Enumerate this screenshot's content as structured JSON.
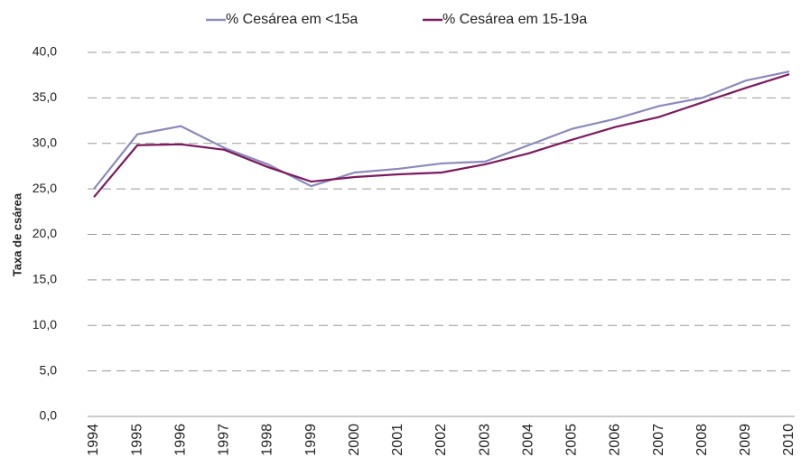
{
  "chart_data": {
    "type": "line",
    "y_label": "Taxa de csárea",
    "categories": [
      "1994",
      "1995",
      "1996",
      "1997",
      "1998",
      "1999",
      "2000",
      "2001",
      "2002",
      "2003",
      "2004",
      "2005",
      "2006",
      "2007",
      "2008",
      "2009",
      "2010"
    ],
    "series": [
      {
        "name": "% Cesárea em <15a",
        "color": "#8b89bd",
        "values": [
          25.0,
          31.0,
          31.9,
          29.5,
          27.7,
          25.3,
          26.8,
          27.2,
          27.8,
          28.0,
          29.8,
          31.6,
          32.7,
          34.1,
          35.0,
          36.9,
          37.9
        ]
      },
      {
        "name": "% Cesárea em 15-19a",
        "color": "#7b1a5e",
        "values": [
          24.1,
          29.8,
          29.9,
          29.3,
          27.4,
          25.8,
          26.3,
          26.6,
          26.8,
          27.7,
          28.9,
          30.4,
          31.8,
          32.9,
          34.5,
          36.1,
          37.6
        ]
      }
    ],
    "ylim": [
      0,
      40
    ],
    "yticks": [
      {
        "value": 0,
        "label": "0,0"
      },
      {
        "value": 5,
        "label": "5,0"
      },
      {
        "value": 10,
        "label": "10,0"
      },
      {
        "value": 15,
        "label": "15,0"
      },
      {
        "value": 20,
        "label": "20,0"
      },
      {
        "value": 25,
        "label": "25,0"
      },
      {
        "value": 30,
        "label": "30,0"
      },
      {
        "value": 35,
        "label": "35,0"
      },
      {
        "value": 40,
        "label": "40,0"
      }
    ],
    "grid": true,
    "legend": "top"
  }
}
